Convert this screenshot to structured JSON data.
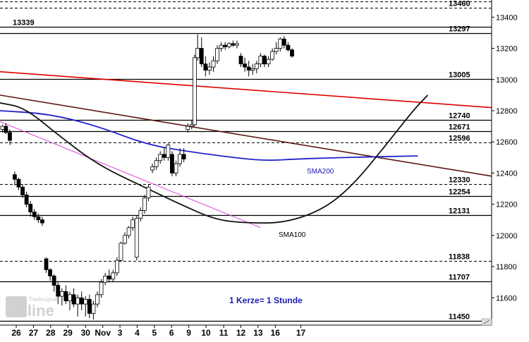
{
  "chart_data": {
    "type": "candlestick",
    "timeframe_note": "1 Kerze= 1 Stunde",
    "y_axis": {
      "ticks": [
        11600,
        11800,
        12000,
        12200,
        12400,
        12600,
        12800,
        13000,
        13200,
        13400
      ],
      "range": [
        11425,
        13510
      ]
    },
    "x_axis": {
      "labels": [
        {
          "label": "26",
          "pos": 0.033
        },
        {
          "label": "27",
          "pos": 0.068
        },
        {
          "label": "28",
          "pos": 0.103
        },
        {
          "label": "29",
          "pos": 0.138
        },
        {
          "label": "30",
          "pos": 0.174
        },
        {
          "label": "Nov",
          "pos": 0.209
        },
        {
          "label": "3",
          "pos": 0.244
        },
        {
          "label": "4",
          "pos": 0.279
        },
        {
          "label": "5",
          "pos": 0.314
        },
        {
          "label": "6",
          "pos": 0.349
        },
        {
          "label": "9",
          "pos": 0.384
        },
        {
          "label": "10",
          "pos": 0.419
        },
        {
          "label": "11",
          "pos": 0.455
        },
        {
          "label": "12",
          "pos": 0.49
        },
        {
          "label": "13",
          "pos": 0.525
        },
        {
          "label": "16",
          "pos": 0.56
        },
        {
          "label": "17",
          "pos": 0.612
        }
      ]
    },
    "levels": [
      {
        "value": 13501,
        "label": "13501",
        "style": "dashed",
        "label_side": "left"
      },
      {
        "value": 13460,
        "label": "13460",
        "style": "dashed",
        "label_side": "right"
      },
      {
        "value": 13339,
        "label": "13339",
        "style": "solid",
        "label_side": "left"
      },
      {
        "value": 13297,
        "label": "13297",
        "style": "solid",
        "label_side": "right"
      },
      {
        "value": 13005,
        "label": "13005",
        "style": "solid",
        "label_side": "right"
      },
      {
        "value": 12740,
        "label": "12740",
        "style": "solid",
        "label_side": "right"
      },
      {
        "value": 12671,
        "label": "12671",
        "style": "solid",
        "label_side": "right"
      },
      {
        "value": 12596,
        "label": "12596",
        "style": "dashed",
        "label_side": "right"
      },
      {
        "value": 12330,
        "label": "12330",
        "style": "dashed",
        "label_side": "right"
      },
      {
        "value": 12254,
        "label": "12254",
        "style": "solid",
        "label_side": "right"
      },
      {
        "value": 12131,
        "label": "12131",
        "style": "solid",
        "label_side": "right"
      },
      {
        "value": 11838,
        "label": "11838",
        "style": "dashed",
        "label_side": "right"
      },
      {
        "value": 11707,
        "label": "11707",
        "style": "solid",
        "label_side": "right"
      },
      {
        "value": 11450,
        "label": "11450",
        "style": "solid",
        "label_side": "right"
      }
    ],
    "trend_lines": [
      {
        "name": "red-trendline",
        "color": "#dd0000",
        "from": [
          0.0,
          13050
        ],
        "to": [
          1.0,
          12820
        ]
      },
      {
        "name": "brown-trendline",
        "color": "#5a1a10",
        "from": [
          0.0,
          12900
        ],
        "to": [
          1.0,
          12380
        ]
      },
      {
        "name": "magenta-trendline",
        "color": "#dd44dd",
        "from": [
          0.0,
          12730
        ],
        "to": [
          0.53,
          12050
        ]
      }
    ],
    "moving_averages": [
      {
        "name": "SMA200",
        "label": "SMA200",
        "color": "#2222cc",
        "points": [
          [
            0.0,
            12800
          ],
          [
            0.1,
            12780
          ],
          [
            0.2,
            12700
          ],
          [
            0.3,
            12580
          ],
          [
            0.4,
            12530
          ],
          [
            0.5,
            12490
          ],
          [
            0.55,
            12480
          ],
          [
            0.6,
            12490
          ],
          [
            0.7,
            12500
          ],
          [
            0.85,
            12510
          ]
        ]
      },
      {
        "name": "SMA100",
        "label": "SMA100",
        "color": "#111111",
        "points": [
          [
            0.0,
            12850
          ],
          [
            0.05,
            12820
          ],
          [
            0.12,
            12640
          ],
          [
            0.2,
            12450
          ],
          [
            0.3,
            12300
          ],
          [
            0.38,
            12180
          ],
          [
            0.44,
            12100
          ],
          [
            0.5,
            12080
          ],
          [
            0.58,
            12080
          ],
          [
            0.66,
            12170
          ],
          [
            0.72,
            12330
          ],
          [
            0.78,
            12560
          ],
          [
            0.84,
            12800
          ],
          [
            0.87,
            12900
          ]
        ]
      }
    ],
    "candles": [
      [
        0.005,
        12680,
        12710,
        12660,
        12700
      ],
      [
        0.012,
        12700,
        12720,
        12650,
        12660
      ],
      [
        0.02,
        12660,
        12680,
        12580,
        12610
      ],
      [
        0.03,
        12390,
        12410,
        12320,
        12360
      ],
      [
        0.038,
        12360,
        12370,
        12290,
        12310
      ],
      [
        0.046,
        12310,
        12330,
        12240,
        12260
      ],
      [
        0.054,
        12260,
        12280,
        12180,
        12200
      ],
      [
        0.062,
        12200,
        12220,
        12120,
        12150
      ],
      [
        0.07,
        12150,
        12170,
        12100,
        12120
      ],
      [
        0.078,
        12120,
        12140,
        12080,
        12100
      ],
      [
        0.086,
        12100,
        12120,
        12060,
        12080
      ],
      [
        0.094,
        11850,
        11860,
        11760,
        11780
      ],
      [
        0.102,
        11780,
        11790,
        11710,
        11740
      ],
      [
        0.11,
        11740,
        11750,
        11640,
        11680
      ],
      [
        0.118,
        11680,
        11700,
        11560,
        11610
      ],
      [
        0.126,
        11610,
        11660,
        11550,
        11640
      ],
      [
        0.134,
        11640,
        11680,
        11560,
        11580
      ],
      [
        0.142,
        11580,
        11640,
        11520,
        11620
      ],
      [
        0.15,
        11620,
        11660,
        11540,
        11560
      ],
      [
        0.158,
        11560,
        11620,
        11480,
        11600
      ],
      [
        0.166,
        11600,
        11640,
        11520,
        11560
      ],
      [
        0.174,
        11560,
        11610,
        11480,
        11590
      ],
      [
        0.182,
        11590,
        11620,
        11470,
        11500
      ],
      [
        0.19,
        11500,
        11580,
        11460,
        11560
      ],
      [
        0.198,
        11560,
        11640,
        11540,
        11620
      ],
      [
        0.206,
        11620,
        11720,
        11600,
        11700
      ],
      [
        0.214,
        11700,
        11760,
        11680,
        11740
      ],
      [
        0.222,
        11740,
        11780,
        11700,
        11720
      ],
      [
        0.23,
        11720,
        11780,
        11700,
        11760
      ],
      [
        0.238,
        11760,
        11860,
        11740,
        11840
      ],
      [
        0.246,
        11840,
        11960,
        11830,
        11950
      ],
      [
        0.254,
        11950,
        12020,
        11940,
        12000
      ],
      [
        0.262,
        12000,
        12060,
        11980,
        12050
      ],
      [
        0.27,
        12050,
        12120,
        12030,
        12100
      ],
      [
        0.278,
        11860,
        12130,
        11840,
        12110
      ],
      [
        0.286,
        12110,
        12180,
        12090,
        12160
      ],
      [
        0.294,
        12160,
        12260,
        12140,
        12240
      ],
      [
        0.302,
        12240,
        12330,
        12220,
        12310
      ],
      [
        0.31,
        12420,
        12460,
        12400,
        12440
      ],
      [
        0.318,
        12440,
        12500,
        12420,
        12480
      ],
      [
        0.326,
        12480,
        12540,
        12460,
        12520
      ],
      [
        0.334,
        12520,
        12560,
        12480,
        12500
      ],
      [
        0.342,
        12500,
        12590,
        12480,
        12580
      ],
      [
        0.35,
        12520,
        12540,
        12380,
        12400
      ],
      [
        0.358,
        12400,
        12480,
        12380,
        12460
      ],
      [
        0.366,
        12460,
        12560,
        12440,
        12520
      ],
      [
        0.374,
        12520,
        12560,
        12470,
        12490
      ],
      [
        0.382,
        12680,
        12720,
        12660,
        12700
      ],
      [
        0.39,
        12700,
        12740,
        12680,
        12710
      ],
      [
        0.396,
        12710,
        13160,
        12700,
        13140
      ],
      [
        0.402,
        13140,
        13290,
        13120,
        13200
      ],
      [
        0.41,
        13200,
        13270,
        13080,
        13100
      ],
      [
        0.418,
        13100,
        13150,
        13020,
        13060
      ],
      [
        0.426,
        13060,
        13110,
        13030,
        13080
      ],
      [
        0.434,
        13080,
        13150,
        13050,
        13120
      ],
      [
        0.442,
        13120,
        13220,
        13100,
        13200
      ],
      [
        0.45,
        13200,
        13240,
        13180,
        13220
      ],
      [
        0.458,
        13220,
        13240,
        13190,
        13210
      ],
      [
        0.466,
        13210,
        13240,
        13200,
        13230
      ],
      [
        0.474,
        13230,
        13250,
        13210,
        13220
      ],
      [
        0.482,
        13220,
        13250,
        13200,
        13230
      ],
      [
        0.49,
        13150,
        13170,
        13080,
        13100
      ],
      [
        0.498,
        13100,
        13140,
        13050,
        13080
      ],
      [
        0.506,
        13080,
        13120,
        13020,
        13060
      ],
      [
        0.514,
        13060,
        13100,
        13030,
        13070
      ],
      [
        0.522,
        13070,
        13120,
        13040,
        13100
      ],
      [
        0.53,
        13100,
        13170,
        13080,
        13150
      ],
      [
        0.538,
        13150,
        13160,
        13080,
        13100
      ],
      [
        0.546,
        13100,
        13150,
        13080,
        13130
      ],
      [
        0.554,
        13130,
        13200,
        13120,
        13180
      ],
      [
        0.562,
        13180,
        13240,
        13160,
        13200
      ],
      [
        0.57,
        13200,
        13270,
        13180,
        13260
      ],
      [
        0.578,
        13260,
        13280,
        13200,
        13220
      ],
      [
        0.586,
        13220,
        13240,
        13180,
        13190
      ],
      [
        0.594,
        13190,
        13200,
        13140,
        13150
      ]
    ]
  },
  "annotations": {
    "sma200_label": "SMA200",
    "sma100_label": "SMA100",
    "candle_note": "1 Kerze= 1 Stunde"
  },
  "watermark": {
    "brand": "Tradesignal",
    "product": "online"
  },
  "colors": {
    "background": "#ffffff",
    "candle_up": "#ffffff",
    "candle_down": "#000000",
    "grid": "#000000",
    "note_text": "#1a1ab0"
  }
}
